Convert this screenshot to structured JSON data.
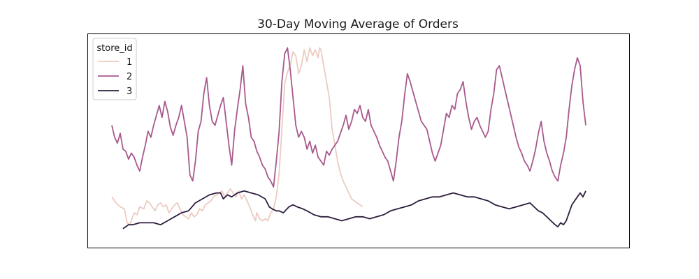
{
  "chart_data": {
    "type": "line",
    "title": "30-Day Moving Average of Orders",
    "xlabel": "",
    "ylabel": "",
    "xlim": [
      0,
      340
    ],
    "ylim": [
      0,
      100
    ],
    "grid": false,
    "axes_ticks_visible": false,
    "legend": {
      "title": "store_id",
      "position": "top-left"
    },
    "series": [
      {
        "name": "1",
        "color": "#eccbc2",
        "x": [
          0,
          3,
          6,
          9,
          11,
          13,
          16,
          18,
          20,
          23,
          25,
          27,
          29,
          31,
          33,
          35,
          37,
          39,
          41,
          43,
          45,
          47,
          49,
          51,
          53,
          55,
          57,
          59,
          61,
          63,
          65,
          67,
          69,
          71,
          73,
          75,
          77,
          79,
          81,
          83,
          85,
          87,
          89,
          91,
          93,
          95,
          97,
          99,
          101,
          103,
          104,
          106,
          108,
          110,
          112,
          114,
          116,
          118,
          120,
          122,
          124,
          126,
          128,
          130,
          132,
          134,
          136,
          138,
          140,
          142,
          144,
          146,
          148,
          149,
          150,
          152,
          154,
          156,
          158,
          160,
          162,
          164,
          166,
          168,
          170,
          172,
          174,
          176,
          178,
          180
        ],
        "y": [
          22,
          19,
          17,
          16,
          9,
          8,
          14,
          13,
          17,
          16,
          20,
          19,
          17,
          15,
          18,
          19,
          17,
          18,
          14,
          16,
          18,
          19,
          16,
          13,
          12,
          11,
          14,
          12,
          13,
          16,
          15,
          18,
          19,
          20,
          22,
          23,
          24,
          25,
          22,
          24,
          26,
          24,
          22,
          25,
          21,
          23,
          20,
          17,
          13,
          10,
          14,
          11,
          10,
          11,
          10,
          14,
          16,
          22,
          34,
          56,
          79,
          85,
          88,
          95,
          93,
          84,
          88,
          96,
          90,
          97,
          93,
          96,
          92,
          97,
          96,
          88,
          80,
          72,
          56,
          48,
          40,
          34,
          30,
          27,
          24,
          21,
          20,
          19,
          18,
          17
        ]
      },
      {
        "name": "2",
        "color": "#a8598c",
        "x": [
          0,
          2,
          4,
          6,
          8,
          10,
          12,
          14,
          16,
          18,
          20,
          22,
          24,
          26,
          28,
          30,
          32,
          34,
          36,
          38,
          40,
          42,
          44,
          46,
          48,
          50,
          52,
          54,
          56,
          58,
          60,
          62,
          64,
          66,
          68,
          70,
          72,
          74,
          76,
          78,
          80,
          82,
          84,
          86,
          88,
          90,
          92,
          94,
          96,
          98,
          100,
          102,
          104,
          106,
          108,
          110,
          112,
          114,
          116,
          118,
          120,
          122,
          124,
          126,
          128,
          130,
          132,
          134,
          136,
          138,
          140,
          142,
          144,
          146,
          148,
          150,
          152,
          154,
          156,
          158,
          160,
          162,
          164,
          166,
          168,
          170,
          172,
          174,
          176,
          178,
          180,
          182,
          184,
          186,
          188,
          190,
          192,
          194,
          196,
          198,
          200,
          202,
          204,
          206,
          208,
          210,
          212,
          214,
          216,
          218,
          220,
          222,
          224,
          226,
          228,
          230,
          232,
          234,
          236,
          238,
          240,
          242,
          244,
          246,
          248,
          250,
          252,
          254,
          256,
          258,
          260,
          262,
          264,
          266,
          268,
          270,
          272,
          274,
          276,
          278,
          280,
          282,
          284,
          286,
          288,
          290,
          292,
          294,
          296,
          298,
          300,
          302,
          304,
          306,
          308,
          310,
          312,
          314,
          316,
          318,
          320,
          322,
          324,
          326,
          328,
          330,
          332,
          334,
          336,
          338,
          340
        ],
        "y": [
          58,
          52,
          49,
          54,
          46,
          45,
          41,
          44,
          42,
          38,
          35,
          42,
          48,
          55,
          52,
          58,
          63,
          68,
          62,
          70,
          65,
          57,
          53,
          58,
          62,
          68,
          60,
          52,
          33,
          30,
          40,
          55,
          60,
          74,
          82,
          68,
          60,
          58,
          63,
          68,
          72,
          60,
          48,
          38,
          55,
          66,
          76,
          88,
          69,
          62,
          52,
          50,
          45,
          42,
          38,
          36,
          32,
          30,
          27,
          40,
          55,
          80,
          94,
          97,
          86,
          72,
          58,
          52,
          55,
          52,
          46,
          50,
          44,
          48,
          42,
          40,
          38,
          45,
          43,
          46,
          48,
          50,
          54,
          58,
          63,
          56,
          60,
          66,
          64,
          68,
          62,
          60,
          66,
          58,
          55,
          52,
          48,
          45,
          42,
          40,
          35,
          30,
          40,
          52,
          60,
          73,
          84,
          80,
          75,
          70,
          65,
          60,
          58,
          56,
          50,
          44,
          40,
          44,
          48,
          56,
          64,
          62,
          68,
          66,
          74,
          76,
          80,
          70,
          62,
          56,
          60,
          62,
          58,
          55,
          52,
          55,
          66,
          74,
          86,
          88,
          82,
          76,
          70,
          64,
          58,
          52,
          47,
          44,
          40,
          38,
          35,
          40,
          46,
          54,
          60,
          50,
          44,
          40,
          35,
          32,
          30,
          38,
          44,
          52,
          66,
          78,
          86,
          92,
          88,
          70,
          58
        ]
      },
      {
        "name": "3",
        "color": "#2d1e3e",
        "x": [
          8,
          12,
          15,
          20,
          25,
          30,
          35,
          40,
          45,
          50,
          55,
          60,
          65,
          70,
          75,
          78,
          80,
          83,
          86,
          90,
          95,
          100,
          105,
          110,
          113,
          115,
          118,
          120,
          123,
          127,
          130,
          133,
          137,
          140,
          145,
          150,
          155,
          160,
          165,
          170,
          175,
          180,
          185,
          190,
          195,
          200,
          205,
          210,
          215,
          220,
          225,
          230,
          235,
          240,
          245,
          250,
          255,
          260,
          265,
          270,
          275,
          280,
          285,
          290,
          295,
          300,
          303,
          306,
          309,
          312,
          315,
          318,
          320,
          322,
          324,
          326,
          328,
          330,
          332,
          334,
          336,
          338,
          340
        ],
        "y": [
          6,
          8,
          8,
          9,
          9,
          9,
          8,
          10,
          12,
          14,
          15,
          19,
          21,
          23,
          24,
          24,
          21,
          23,
          22,
          24,
          25,
          24,
          23,
          21,
          17,
          16,
          15,
          15,
          14,
          17,
          18,
          17,
          16,
          15,
          13,
          12,
          12,
          11,
          10,
          11,
          12,
          12,
          11,
          12,
          13,
          15,
          16,
          17,
          18,
          20,
          21,
          22,
          22,
          23,
          24,
          23,
          22,
          22,
          21,
          20,
          18,
          17,
          16,
          17,
          18,
          19,
          17,
          15,
          14,
          12,
          10,
          8,
          7,
          9,
          8,
          10,
          14,
          18,
          20,
          22,
          24,
          22,
          25
        ]
      }
    ]
  }
}
